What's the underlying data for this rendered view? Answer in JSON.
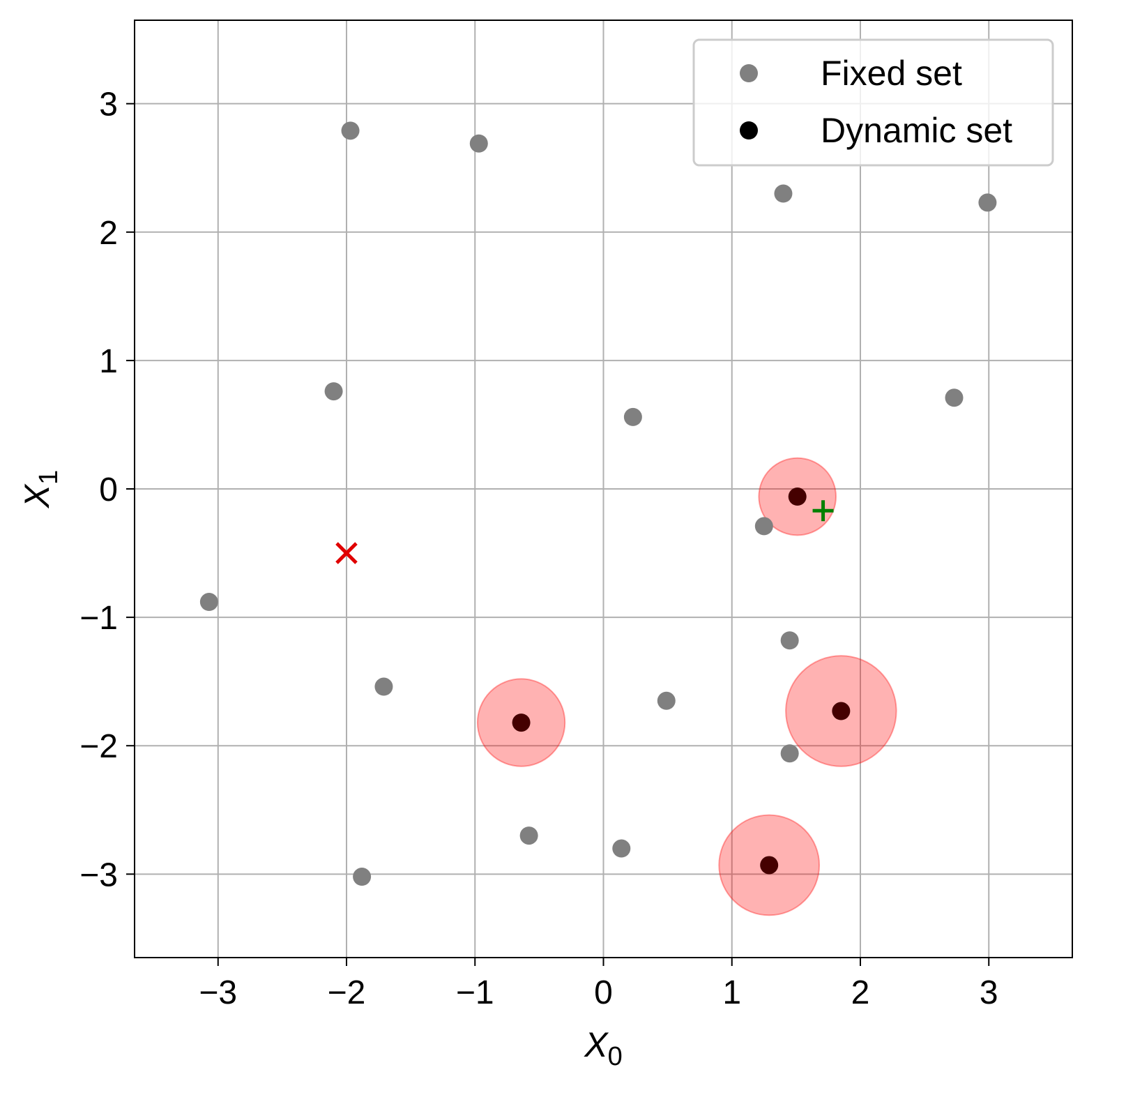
{
  "chart_data": {
    "type": "scatter",
    "xlabel": "X",
    "xlabel_sub": "0",
    "ylabel": "X",
    "ylabel_sub": "1",
    "xlim": [
      -3.65,
      3.65
    ],
    "ylim": [
      -3.65,
      3.65
    ],
    "xticks": [
      -3,
      -2,
      -1,
      0,
      1,
      2,
      3
    ],
    "yticks": [
      -3,
      -2,
      -1,
      0,
      1,
      2,
      3
    ],
    "xtick_labels": [
      "−3",
      "−2",
      "−1",
      "0",
      "1",
      "2",
      "3"
    ],
    "ytick_labels": [
      "−3",
      "−2",
      "−1",
      "0",
      "1",
      "2",
      "3"
    ],
    "grid": true,
    "legend_position": "top-right",
    "series": [
      {
        "name": "Fixed set",
        "color": "#808080",
        "points": [
          [
            -1.97,
            2.79
          ],
          [
            -0.97,
            2.69
          ],
          [
            1.4,
            2.3
          ],
          [
            2.99,
            2.23
          ],
          [
            -2.1,
            0.76
          ],
          [
            0.23,
            0.56
          ],
          [
            2.73,
            0.71
          ],
          [
            1.25,
            -0.29
          ],
          [
            -3.07,
            -0.88
          ],
          [
            1.45,
            -1.18
          ],
          [
            -1.71,
            -1.54
          ],
          [
            0.49,
            -1.65
          ],
          [
            1.45,
            -2.06
          ],
          [
            -0.58,
            -2.7
          ],
          [
            0.14,
            -2.8
          ],
          [
            -1.88,
            -3.02
          ]
        ]
      },
      {
        "name": "Dynamic set",
        "color": "#000000",
        "points": [
          [
            1.51,
            -0.06
          ],
          [
            -0.64,
            -1.82
          ],
          [
            1.85,
            -1.73
          ],
          [
            1.29,
            -2.93
          ]
        ],
        "halo_radii": [
          0.3,
          0.34,
          0.43,
          0.39
        ],
        "halo_color": "#ff0000"
      }
    ],
    "markers": [
      {
        "type": "x",
        "x": -2.0,
        "y": -0.5,
        "color": "#e00000"
      },
      {
        "type": "plus",
        "x": 1.71,
        "y": -0.17,
        "color": "#008000"
      }
    ]
  }
}
